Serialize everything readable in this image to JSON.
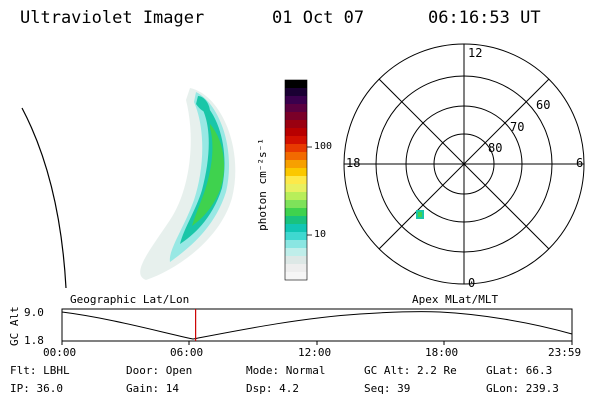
{
  "header": {
    "title": "Ultraviolet Imager",
    "date": "01 Oct 07",
    "time": "06:16:53 UT"
  },
  "colorbar": {
    "unit_label": "photon cm⁻²s⁻¹",
    "ticks": [
      "100",
      "10"
    ],
    "colors": [
      "#000000",
      "#1a0033",
      "#3a004d",
      "#5a0040",
      "#7a0028",
      "#9a0010",
      "#b80000",
      "#d21000",
      "#e83a00",
      "#f26a00",
      "#f7a000",
      "#fbc800",
      "#fde94a",
      "#e8f060",
      "#b8ee5a",
      "#7ee25a",
      "#3fd24e",
      "#19c27e",
      "#12c6b4",
      "#3fd8d0",
      "#8ae6e2",
      "#bfeeea",
      "#dde8e6",
      "#eeeeee",
      "#f6f6f6"
    ]
  },
  "polar_plot": {
    "mlt_labels": {
      "top": "12",
      "left": "18",
      "right": "6",
      "bottom": "0"
    },
    "lat_labels": [
      "60",
      "70",
      "80"
    ]
  },
  "timeline": {
    "y_axis_label": "GC Alt",
    "y_ticks": [
      "9.0",
      "1.8"
    ],
    "left_caption": "Geographic Lat/Lon",
    "right_caption": "Apex MLat/MLT",
    "x_ticks": [
      "00:00",
      "06:00",
      "12:00",
      "18:00",
      "23:59"
    ],
    "current_time_fraction": 0.262
  },
  "status": {
    "row1": [
      {
        "label": "Flt:",
        "value": "LBHL"
      },
      {
        "label": "Door:",
        "value": "Open"
      },
      {
        "label": "Mode:",
        "value": "Normal"
      },
      {
        "label": "GC Alt:",
        "value": "2.2 Re"
      },
      {
        "label": "GLat:",
        "value": "66.3"
      }
    ],
    "row2": [
      {
        "label": "IP:",
        "value": "36.0"
      },
      {
        "label": "Gain:",
        "value": "14"
      },
      {
        "label": "Dsp:",
        "value": "4.2"
      },
      {
        "label": "Seq:",
        "value": "39"
      },
      {
        "label": "GLon:",
        "value": "239.3"
      }
    ]
  },
  "colors": {
    "accent_line": "#cc0000",
    "aurora_core": "#3cd24a",
    "aurora_edge": "#12c6b4"
  }
}
